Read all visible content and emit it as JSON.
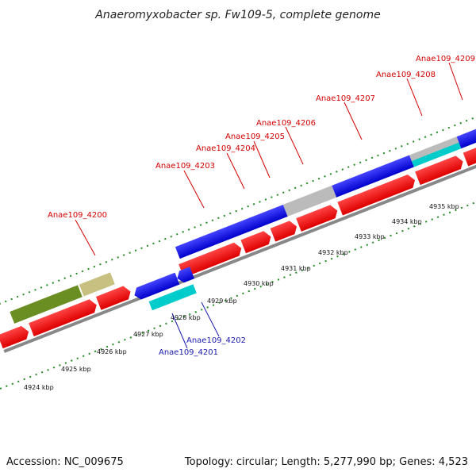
{
  "title": "Anaeromyxobacter sp. Fw109-5, complete genome",
  "footer": {
    "accession": "Accession: NC_009675",
    "stats": "Topology: circular; Length: 5,277,990 bp; Genes: 4,523"
  },
  "colors": {
    "forward_gene": "#ff0000",
    "reverse_gene": "#0000ee",
    "cyan_feature": "#00cccc",
    "olive_feature": "#6b8e23",
    "khaki_feature": "#c8c080",
    "grey_feature": "#bbbbbb",
    "backbone": "#888888",
    "tick_dot": "#228B22",
    "red_label": "#d40000",
    "blue_label": "#1a1ab0"
  },
  "gene_labels_red": [
    "Anae109_4200",
    "Anae109_4203",
    "Anae109_4204",
    "Anae109_4205",
    "Anae109_4206",
    "Anae109_4207",
    "Anae109_4208",
    "Anae109_4209"
  ],
  "gene_labels_blue": [
    "Anae109_4202",
    "Anae109_4201"
  ],
  "kbp_ticks": [
    "4924 kbp",
    "4925 kbp",
    "4926 kbp",
    "4927 kbp",
    "4928 kbp",
    "4929 kbp",
    "4930 kbp",
    "4931 kbp",
    "4932 kbp",
    "4933 kbp",
    "4934 kbp",
    "4935 kbp"
  ]
}
